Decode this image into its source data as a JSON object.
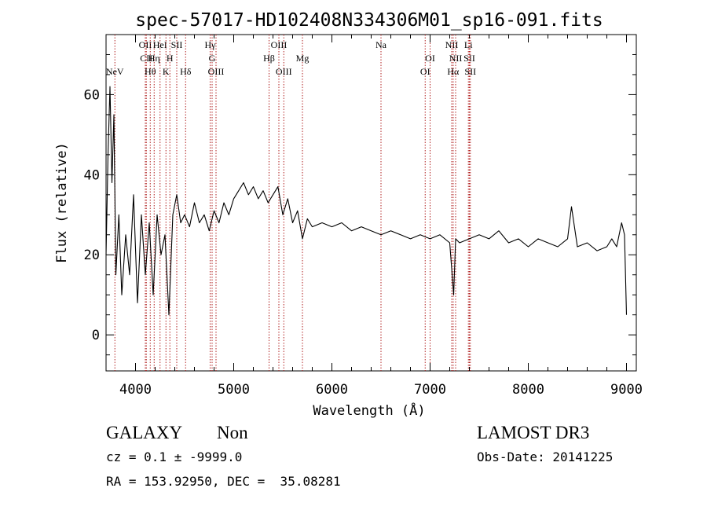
{
  "chart_data": {
    "type": "line",
    "title": "spec-57017-HD102408N334306M01_sp16-091.fits",
    "xlabel": "Wavelength (Å)",
    "ylabel": "Flux (relative)",
    "xlim": [
      3700,
      9100
    ],
    "ylim": [
      -9,
      75
    ],
    "x_ticks": [
      4000,
      5000,
      6000,
      7000,
      8000,
      9000
    ],
    "x_tick_labels": [
      "4000",
      "5000",
      "6000",
      "7000",
      "8000",
      "9000"
    ],
    "y_ticks": [
      0,
      20,
      40,
      60
    ],
    "y_tick_labels": [
      "0",
      "20",
      "40",
      "60"
    ],
    "grid": false,
    "line_color": "#000000",
    "marker_color": "#b22222",
    "series": [
      {
        "x": [
          3700,
          3720,
          3740,
          3760,
          3780,
          3800,
          3830,
          3860,
          3900,
          3940,
          3980,
          4020,
          4060,
          4100,
          4140,
          4180,
          4220,
          4260,
          4300,
          4340,
          4380,
          4420,
          4460,
          4500,
          4550,
          4600,
          4650,
          4700,
          4750,
          4800,
          4850,
          4900,
          4950,
          5000,
          5050,
          5100,
          5150,
          5200,
          5250,
          5300,
          5350,
          5400,
          5450,
          5500,
          5550,
          5600,
          5650,
          5700,
          5750,
          5800,
          5900,
          6000,
          6100,
          6200,
          6300,
          6400,
          6500,
          6600,
          6700,
          6800,
          6900,
          7000,
          7100,
          7200,
          7240,
          7260,
          7300,
          7400,
          7500,
          7600,
          7700,
          7800,
          7900,
          8000,
          8100,
          8200,
          8300,
          8400,
          8440,
          8500,
          8600,
          8700,
          8800,
          8850,
          8900,
          8950,
          8980,
          9000
        ],
        "y": [
          20,
          45,
          62,
          38,
          55,
          15,
          30,
          10,
          25,
          15,
          35,
          8,
          30,
          15,
          28,
          10,
          30,
          20,
          25,
          5,
          30,
          35,
          28,
          30,
          27,
          33,
          28,
          30,
          26,
          31,
          28,
          33,
          30,
          34,
          36,
          38,
          35,
          37,
          34,
          36,
          33,
          35,
          37,
          30,
          34,
          28,
          31,
          24,
          29,
          27,
          28,
          27,
          28,
          26,
          27,
          26,
          25,
          26,
          25,
          24,
          25,
          24,
          25,
          23,
          10,
          24,
          23,
          24,
          25,
          24,
          26,
          23,
          24,
          22,
          24,
          23,
          22,
          24,
          32,
          22,
          23,
          21,
          22,
          24,
          22,
          28,
          25,
          5
        ]
      }
    ],
    "lines": [
      {
        "label": "NeV",
        "x": 3790,
        "row": 3
      },
      {
        "label": "OII",
        "x": 4100,
        "row": 0
      },
      {
        "label": "CII",
        "x": 4110,
        "row": 1
      },
      {
        "label": "Hθ",
        "x": 4150,
        "row": 2
      },
      {
        "label": "Hη",
        "x": 4190,
        "row": 1
      },
      {
        "label": "HeI",
        "x": 4250,
        "row": 0
      },
      {
        "label": "K",
        "x": 4310,
        "row": 2
      },
      {
        "label": "H",
        "x": 4350,
        "row": 1
      },
      {
        "label": "SII",
        "x": 4420,
        "row": 0
      },
      {
        "label": "Hδ",
        "x": 4510,
        "row": 2
      },
      {
        "label": "Hγ",
        "x": 4760,
        "row": 0
      },
      {
        "label": "G",
        "x": 4780,
        "row": 1
      },
      {
        "label": "OIII",
        "x": 4820,
        "row": 2
      },
      {
        "label": "Hβ",
        "x": 5360,
        "row": 1
      },
      {
        "label": "OIII",
        "x": 5460,
        "row": 0
      },
      {
        "label": "OIII",
        "x": 5510,
        "row": 2
      },
      {
        "label": "Mg",
        "x": 5700,
        "row": 1
      },
      {
        "label": "Na",
        "x": 6500,
        "row": 0
      },
      {
        "label": "OI",
        "x": 6950,
        "row": 2
      },
      {
        "label": "OI",
        "x": 7000,
        "row": 1
      },
      {
        "label": "NII",
        "x": 7220,
        "row": 0
      },
      {
        "label": "Hα",
        "x": 7235,
        "row": 2
      },
      {
        "label": "NII",
        "x": 7260,
        "row": 1
      },
      {
        "label": "Li",
        "x": 7390,
        "row": 0
      },
      {
        "label": "SII",
        "x": 7400,
        "row": 1
      },
      {
        "label": "SII",
        "x": 7410,
        "row": 2
      }
    ]
  },
  "info": {
    "class_label": "GALAXY",
    "subclass_label": "Non",
    "survey_label": "LAMOST DR3",
    "cz_text": "cz = 0.1 ± -9999.0",
    "obs_date_text": "Obs-Date: 20141225",
    "radec_text": "RA = 153.92950, DEC =  35.08281"
  }
}
